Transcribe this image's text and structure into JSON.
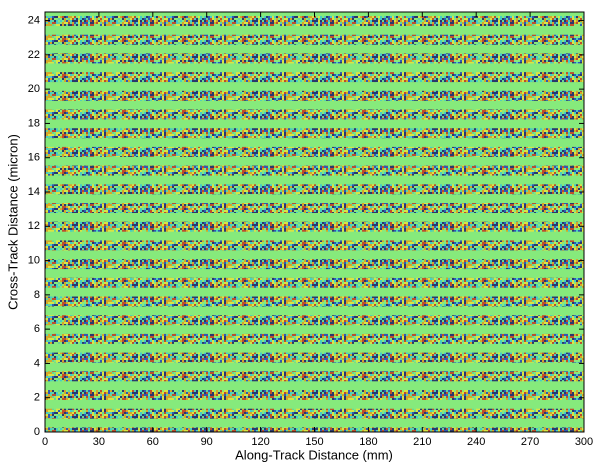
{
  "chart_data": {
    "type": "image",
    "x_label": "Along-Track Distance (mm)",
    "y_label": "Cross-Track Distance (micron)",
    "xlim": [
      0,
      300
    ],
    "xticks": [
      0,
      30,
      60,
      90,
      120,
      150,
      180,
      210,
      240,
      270,
      300
    ],
    "ylim": [
      0,
      24.5
    ],
    "yticks": [
      0,
      2,
      4,
      6,
      8,
      10,
      12,
      14,
      16,
      18,
      20,
      22,
      24
    ]
  }
}
